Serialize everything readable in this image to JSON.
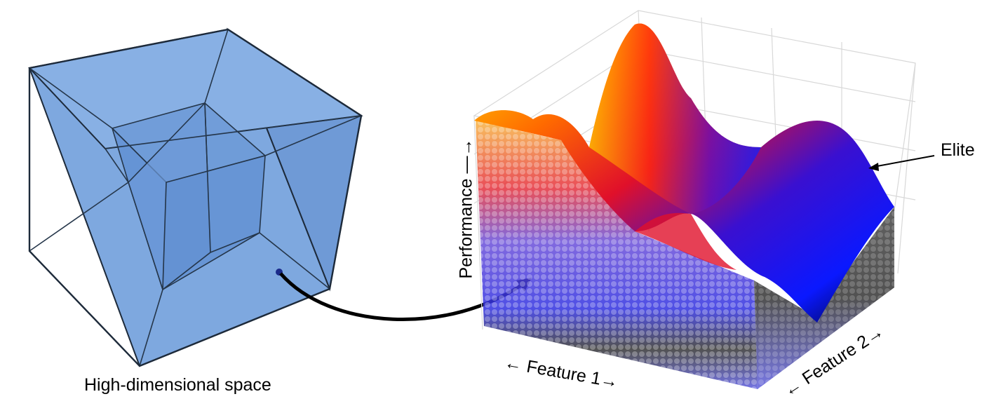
{
  "caption": "High-dimensional space",
  "labels": {
    "elite": "Elite",
    "performance": "Performance —→",
    "feature1": "← Feature 1→",
    "feature2": "← Feature 2→"
  },
  "colors": {
    "cube_fill": "#6f9fdc",
    "cube_edge": "#1d2a3a",
    "surface_high": "#ffd400",
    "surface_mid": "#e8201a",
    "surface_low": "#1a1aff",
    "surface_min": "#000000",
    "dots_top": "#f2a23a",
    "dots_mid": "#5a5ad8",
    "dots_dark": "#2b2b2b"
  },
  "icons": [
    "tesseract-icon",
    "mapping-arrow-icon",
    "elite-pointer-icon"
  ]
}
